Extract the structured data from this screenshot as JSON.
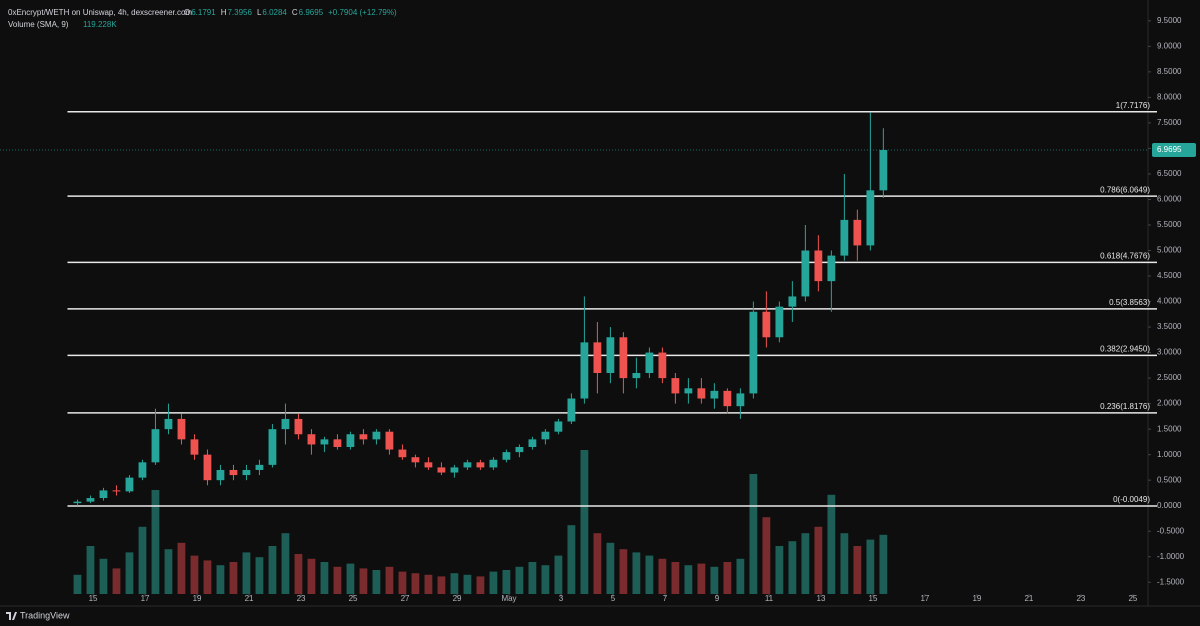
{
  "chart_data": {
    "type": "candlestick",
    "title": "0xEncrypt/WETH on Uniswap, 4h, dexscreener.com",
    "ohlc_labels": [
      "O",
      "H",
      "L",
      "C"
    ],
    "change": "+0.7904 (+12.79%)",
    "volume_label": "Volume (SMA, 9)",
    "volume_sma": "119.228K",
    "brand": "TradingView",
    "up_color": "#26a69a",
    "down_color": "#ef5350",
    "volume_up_color": "#1d5e57",
    "volume_down_color": "#7a2b2e",
    "x": [
      0.4,
      0.9,
      1.4,
      1.9,
      2.4,
      2.9,
      3.4,
      3.9,
      4.4,
      4.9,
      5.4,
      5.9,
      6.4,
      6.9,
      7.4,
      7.9,
      8.4,
      8.9,
      9.4,
      9.9,
      10.4,
      10.9,
      11.4,
      11.9,
      12.4,
      12.9,
      13.4,
      13.9,
      14.4,
      14.9,
      15.4,
      15.9,
      16.4,
      16.9,
      17.4,
      17.9,
      18.4,
      18.9,
      19.4,
      19.9,
      20.4,
      20.9,
      21.4,
      21.9,
      22.4,
      22.9,
      23.4,
      23.9,
      24.4,
      24.9,
      25.4,
      25.9,
      26.4,
      26.9,
      27.4,
      27.9,
      28.4,
      28.9,
      29.4,
      29.9,
      30.4,
      30.9,
      31.4
    ],
    "open": [
      0.05,
      0.08,
      0.15,
      0.3,
      0.28,
      0.55,
      0.85,
      1.5,
      1.7,
      1.3,
      1.0,
      0.5,
      0.7,
      0.6,
      0.7,
      0.8,
      1.5,
      1.7,
      1.4,
      1.2,
      1.3,
      1.15,
      1.4,
      1.3,
      1.45,
      1.1,
      0.95,
      0.85,
      0.75,
      0.65,
      0.75,
      0.85,
      0.75,
      0.9,
      1.05,
      1.15,
      1.3,
      1.45,
      1.65,
      2.1,
      3.2,
      2.6,
      3.3,
      2.5,
      2.6,
      3.0,
      2.5,
      2.2,
      2.3,
      2.1,
      2.25,
      1.95,
      2.2,
      3.8,
      3.3,
      3.9,
      4.1,
      5.0,
      4.4,
      4.9,
      5.6,
      5.1,
      6.1791
    ],
    "high": [
      0.12,
      0.2,
      0.35,
      0.4,
      0.6,
      0.9,
      1.9,
      2.0,
      1.8,
      1.4,
      1.1,
      0.8,
      0.8,
      0.8,
      0.9,
      1.6,
      2.0,
      1.8,
      1.5,
      1.35,
      1.4,
      1.45,
      1.5,
      1.5,
      1.5,
      1.2,
      1.0,
      0.95,
      0.85,
      0.8,
      0.9,
      0.9,
      0.95,
      1.1,
      1.2,
      1.35,
      1.5,
      1.7,
      2.2,
      4.1,
      3.6,
      3.5,
      3.4,
      2.9,
      3.1,
      3.1,
      2.6,
      2.5,
      2.5,
      2.4,
      2.3,
      2.3,
      4.0,
      4.2,
      4.0,
      4.4,
      5.5,
      5.3,
      5.0,
      6.5,
      5.8,
      7.7,
      7.3956
    ],
    "low": [
      0.0,
      0.05,
      0.1,
      0.2,
      0.25,
      0.5,
      0.8,
      1.4,
      1.2,
      0.9,
      0.4,
      0.4,
      0.5,
      0.5,
      0.6,
      0.75,
      1.2,
      1.3,
      1.0,
      1.05,
      1.1,
      1.1,
      1.2,
      1.2,
      1.0,
      0.9,
      0.75,
      0.7,
      0.6,
      0.55,
      0.7,
      0.7,
      0.7,
      0.85,
      0.95,
      1.1,
      1.2,
      1.4,
      1.6,
      2.0,
      2.2,
      2.4,
      2.2,
      2.3,
      2.5,
      2.4,
      2.0,
      2.0,
      2.0,
      1.9,
      1.8,
      1.7,
      2.1,
      3.1,
      3.2,
      3.6,
      4.0,
      4.2,
      3.8,
      4.8,
      4.8,
      5.0,
      6.0284
    ],
    "close": [
      0.08,
      0.15,
      0.3,
      0.28,
      0.55,
      0.85,
      1.5,
      1.7,
      1.3,
      1.0,
      0.5,
      0.7,
      0.6,
      0.7,
      0.8,
      1.5,
      1.7,
      1.4,
      1.2,
      1.3,
      1.15,
      1.4,
      1.3,
      1.45,
      1.1,
      0.95,
      0.85,
      0.75,
      0.65,
      0.75,
      0.85,
      0.75,
      0.9,
      1.05,
      1.15,
      1.3,
      1.45,
      1.65,
      2.1,
      3.2,
      2.6,
      3.3,
      2.5,
      2.6,
      3.0,
      2.5,
      2.2,
      2.3,
      2.1,
      2.25,
      1.95,
      2.2,
      3.8,
      3.3,
      3.9,
      4.1,
      5.0,
      4.4,
      4.9,
      5.6,
      5.1,
      6.1791,
      6.9695
    ],
    "volume": [
      120,
      300,
      220,
      160,
      260,
      420,
      650,
      280,
      320,
      240,
      210,
      180,
      200,
      260,
      230,
      300,
      380,
      250,
      220,
      200,
      170,
      190,
      160,
      150,
      170,
      140,
      130,
      120,
      110,
      130,
      120,
      110,
      140,
      150,
      170,
      200,
      180,
      240,
      430,
      900,
      380,
      320,
      280,
      260,
      240,
      220,
      200,
      180,
      190,
      170,
      200,
      220,
      750,
      480,
      300,
      330,
      380,
      420,
      620,
      380,
      300,
      340,
      370
    ],
    "xlim": [
      -2.58,
      41.58
    ],
    "ylim": [
      -1.73,
      9.81
    ],
    "volume_lim": [
      0,
      1000
    ],
    "xticks": [
      {
        "value": 1,
        "label": "15"
      },
      {
        "value": 3,
        "label": "17"
      },
      {
        "value": 5,
        "label": "19"
      },
      {
        "value": 7,
        "label": "21"
      },
      {
        "value": 9,
        "label": "23"
      },
      {
        "value": 11,
        "label": "25"
      },
      {
        "value": 13,
        "label": "27"
      },
      {
        "value": 15,
        "label": "29"
      },
      {
        "value": 17,
        "label": "May"
      },
      {
        "value": 19,
        "label": "3"
      },
      {
        "value": 21,
        "label": "5"
      },
      {
        "value": 23,
        "label": "7"
      },
      {
        "value": 25,
        "label": "9"
      },
      {
        "value": 27,
        "label": "11"
      },
      {
        "value": 29,
        "label": "13"
      },
      {
        "value": 31,
        "label": "15"
      },
      {
        "value": 33,
        "label": "17"
      },
      {
        "value": 35,
        "label": "19"
      },
      {
        "value": 37,
        "label": "21"
      },
      {
        "value": 39,
        "label": "23"
      },
      {
        "value": 41,
        "label": "25"
      }
    ],
    "yticks": [
      {
        "value": 9.5,
        "label": "9.5000"
      },
      {
        "value": 9,
        "label": "9.0000"
      },
      {
        "value": 8.5,
        "label": "8.5000"
      },
      {
        "value": 8,
        "label": "8.0000"
      },
      {
        "value": 7.5,
        "label": "7.5000"
      },
      {
        "value": 7,
        "label": "7.0000"
      },
      {
        "value": 6.5,
        "label": "6.5000"
      },
      {
        "value": 6,
        "label": "6.0000"
      },
      {
        "value": 5.5,
        "label": "5.5000"
      },
      {
        "value": 5,
        "label": "5.0000"
      },
      {
        "value": 4.5,
        "label": "4.5000"
      },
      {
        "value": 4,
        "label": "4.0000"
      },
      {
        "value": 3.5,
        "label": "3.5000"
      },
      {
        "value": 3,
        "label": "3.0000"
      },
      {
        "value": 2.5,
        "label": "2.5000"
      },
      {
        "value": 2,
        "label": "2.0000"
      },
      {
        "value": 1.5,
        "label": "1.5000"
      },
      {
        "value": 1,
        "label": "1.0000"
      },
      {
        "value": 0.5,
        "label": "0.5000"
      },
      {
        "value": 0,
        "label": "0.0000"
      },
      {
        "value": -0.5,
        "label": "-0.5000"
      },
      {
        "value": -1,
        "label": "-1.0000"
      },
      {
        "value": -1.5,
        "label": "-1.5000"
      }
    ],
    "fib_levels": [
      {
        "value": 7.7176,
        "label": "1(7.7176)"
      },
      {
        "value": 6.0649,
        "label": "0.786(6.0649)"
      },
      {
        "value": 4.7676,
        "label": "0.618(4.7676)"
      },
      {
        "value": 3.8563,
        "label": "0.5(3.8563)"
      },
      {
        "value": 2.945,
        "label": "0.382(2.9450)"
      },
      {
        "value": 1.8176,
        "label": "0.236(1.8176)"
      },
      {
        "value": -0.0049,
        "label": "0(-0.0049)"
      }
    ]
  }
}
